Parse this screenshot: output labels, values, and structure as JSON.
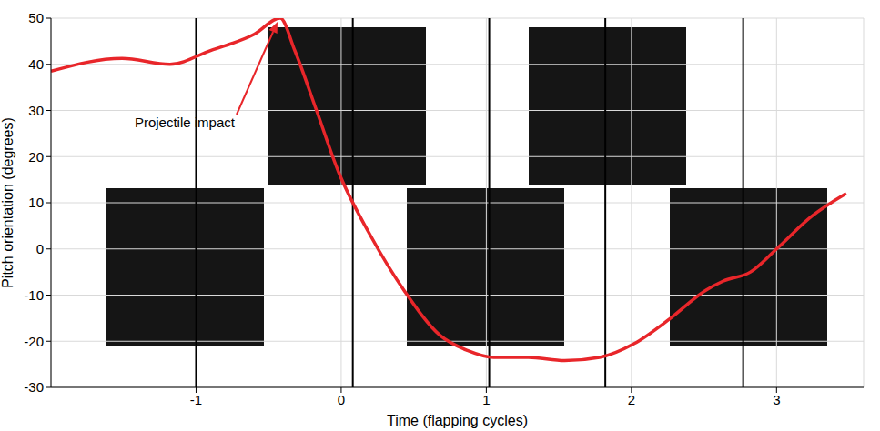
{
  "chart_data": {
    "type": "line",
    "x_label": "Time (flapping cycles)",
    "y_label": "Pitch orientation (degrees)",
    "x": [
      -2.0,
      -1.51,
      -1.18,
      -0.9,
      -0.6,
      -0.42,
      -0.32,
      -0.17,
      -0.02,
      0.2,
      0.44,
      0.68,
      0.87,
      1.05,
      1.29,
      1.54,
      1.78,
      2.02,
      2.27,
      2.51,
      2.63,
      2.82,
      3.0,
      3.24,
      3.48
    ],
    "values": [
      38.5,
      41.3,
      40,
      43,
      46.5,
      50,
      43,
      30,
      16.8,
      3,
      -9.3,
      -18.7,
      -22,
      -23.5,
      -23.5,
      -24.2,
      -23.5,
      -20.5,
      -15,
      -9,
      -7,
      -5,
      0,
      7,
      12
    ],
    "color": "#e8262a",
    "frame_times": [
      -1.0,
      0.08,
      1.02,
      1.82,
      2.77
    ],
    "annotations": [
      {
        "text": "Projectile impact",
        "x": -0.42,
        "y": 50
      }
    ],
    "xlim": [
      -2,
      3.6
    ],
    "ylim": [
      -30,
      50
    ],
    "xticks": [
      -1,
      0,
      1,
      2,
      3
    ],
    "yticks": [
      -30,
      -20,
      -10,
      0,
      10,
      20,
      30,
      40,
      50
    ],
    "grid": true
  }
}
